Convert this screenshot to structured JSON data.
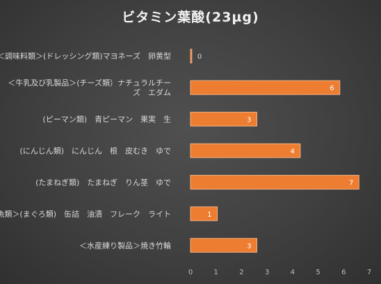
{
  "chart_data": {
    "type": "bar",
    "orientation": "horizontal",
    "title": "ビタミン葉酸(23µg)",
    "categories": [
      "＜調味料類＞(ドレッシング類)マヨネーズ　卵黄型",
      "＜牛乳及び乳製品＞(チーズ類）ナチュラルチーズ　エダム",
      "(ピーマン類)　青ピーマン　果実　生",
      "(にんじん類)　にんじん　根　皮むき　ゆで",
      "(たまねぎ類)　たまねぎ　りん茎　ゆで",
      "＜魚類＞(まぐろ類)　缶詰　油漬　フレーク　ライト",
      "＜水産練り製品＞焼き竹輪"
    ],
    "category_lines": [
      [
        "＜調味料類＞(ドレッシング類)マヨネーズ　卵黄型"
      ],
      [
        "＜牛乳及び乳製品＞(チーズ類）ナチュラルチー",
        "ズ　エダム"
      ],
      [
        "(ピーマン類)　青ピーマン　果実　生"
      ],
      [
        "(にんじん類)　にんじん　根　皮むき　ゆで"
      ],
      [
        "(たまねぎ類)　たまねぎ　りん茎　ゆで"
      ],
      [
        "＜魚類＞(まぐろ類)　缶詰　油漬　フレーク　ライト"
      ],
      [
        "＜水産練り製品＞焼き竹輪"
      ]
    ],
    "values": [
      0.05,
      5.85,
      2.6,
      4.3,
      6.6,
      1.05,
      2.6
    ],
    "data_labels": [
      "0",
      "6",
      "3",
      "4",
      "7",
      "1",
      "3"
    ],
    "xlim": [
      0,
      7
    ],
    "xticks": [
      0,
      1,
      2,
      3,
      4,
      5,
      6,
      7
    ],
    "grid": false,
    "legend": "none",
    "colors": {
      "bar": "#ed7d31",
      "bar_stroke": "#f4b183",
      "background": "#404040",
      "text": "#d9d9d9"
    }
  }
}
